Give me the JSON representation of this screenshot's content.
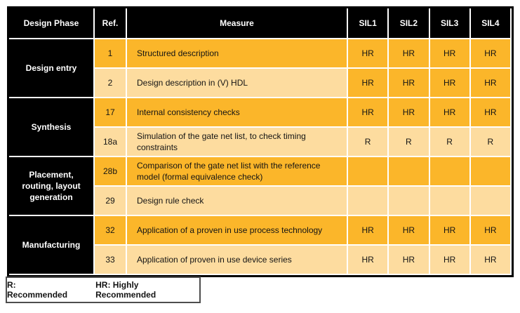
{
  "colors": {
    "dark_gold": "#FBB62A",
    "light_tan": "#FDDC9F",
    "header_bg": "#000000",
    "header_text": "#FFFFFF"
  },
  "table": {
    "headers": {
      "phase": "Design Phase",
      "ref": "Ref.",
      "measure": "Measure",
      "sil1": "SIL1",
      "sil2": "SIL2",
      "sil3": "SIL3",
      "sil4": "SIL4"
    },
    "groups": [
      {
        "phase": "Design entry",
        "rows": [
          {
            "ref": "1",
            "measure": "Structured description",
            "sil": [
              "HR",
              "HR",
              "HR",
              "HR"
            ]
          },
          {
            "ref": "2",
            "measure": "Design description in (V) HDL",
            "sil": [
              "HR",
              "HR",
              "HR",
              "HR"
            ]
          }
        ]
      },
      {
        "phase": "Synthesis",
        "rows": [
          {
            "ref": "17",
            "measure": "Internal consistency checks",
            "sil": [
              "HR",
              "HR",
              "HR",
              "HR"
            ]
          },
          {
            "ref": "18a",
            "measure": "Simulation of the gate net list, to check timing constraints",
            "sil": [
              "R",
              "R",
              "R",
              "R"
            ]
          }
        ]
      },
      {
        "phase": "Placement, routing, layout generation",
        "rows": [
          {
            "ref": "28b",
            "measure": "Comparison of the gate net list with the reference model (formal equivalence check)",
            "sil": [
              "",
              "",
              "",
              ""
            ]
          },
          {
            "ref": "29",
            "measure": "Design rule check",
            "sil": [
              "",
              "",
              "",
              ""
            ]
          }
        ]
      },
      {
        "phase": "Manufacturing",
        "rows": [
          {
            "ref": "32",
            "measure": "Application of a proven in use process technology",
            "sil": [
              "HR",
              "HR",
              "HR",
              "HR"
            ]
          },
          {
            "ref": "33",
            "measure": "Application of proven in use device series",
            "sil": [
              "HR",
              "HR",
              "HR",
              "HR"
            ]
          }
        ]
      }
    ]
  },
  "legend": {
    "r_label": "R: Recommended",
    "hr_label": "HR: Highly Recommended"
  }
}
